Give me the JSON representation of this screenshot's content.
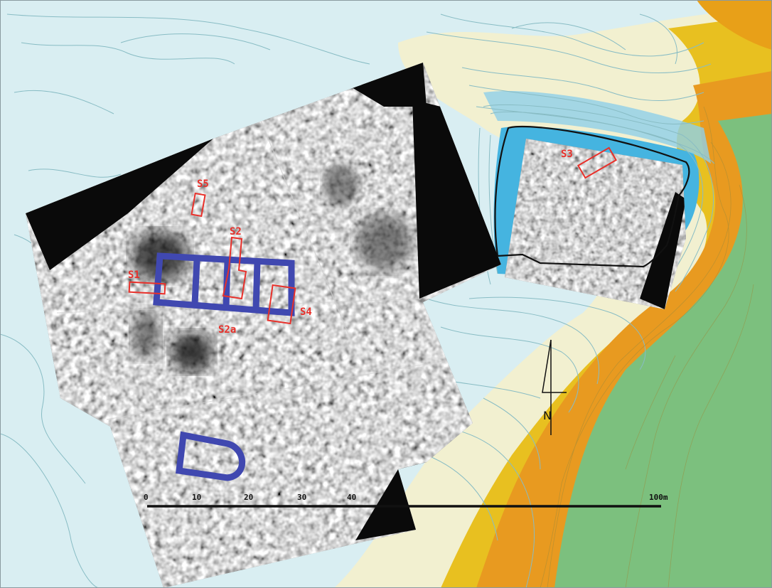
{
  "map": {
    "trench_labels": {
      "s1": "S1",
      "s2": "S2",
      "s2a": "S2a",
      "s3": "S3",
      "s4": "S4",
      "s5": "S5"
    },
    "north_arrow_label": "N",
    "scale_bar": {
      "ticks": [
        "0",
        "10",
        "20",
        "30",
        "40"
      ],
      "end_label": "100m"
    },
    "colors": {
      "lowland": "#d9eef2",
      "water_blue": "#45b4e0",
      "contour_line": "#88bcc4",
      "hill_yellow": "#e8c020",
      "hill_orange": "#e89a20",
      "hill_green": "#7cc07e",
      "trench_red": "#e8302a",
      "wall_blue": "#4048b0",
      "ink_black": "#111111"
    }
  }
}
